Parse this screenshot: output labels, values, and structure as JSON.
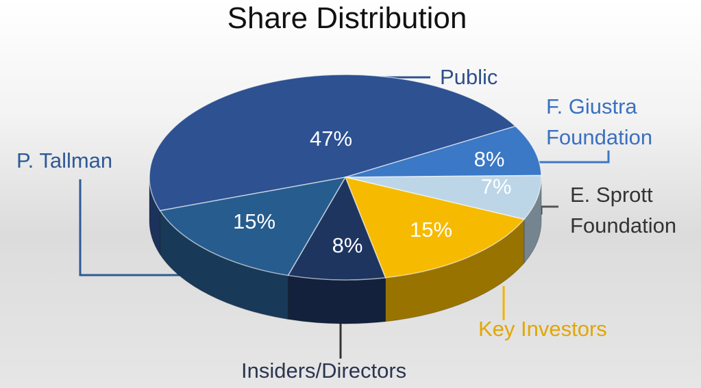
{
  "chart_data": {
    "type": "pie3d",
    "title": "Share Distribution",
    "categories": [
      "Public",
      "F. Giustra Foundation",
      "E. Sprott Foundation",
      "Key Investors",
      "Insiders/Directors",
      "P. Tallman"
    ],
    "values": [
      47,
      8,
      7,
      15,
      8,
      15
    ],
    "value_labels": [
      "47%",
      "8%",
      "7%",
      "15%",
      "8%",
      "15%"
    ],
    "colors": [
      "#2d5191",
      "#3b78c6",
      "#bcd6e8",
      "#f6ba00",
      "#1e3560",
      "#275c8e"
    ]
  }
}
